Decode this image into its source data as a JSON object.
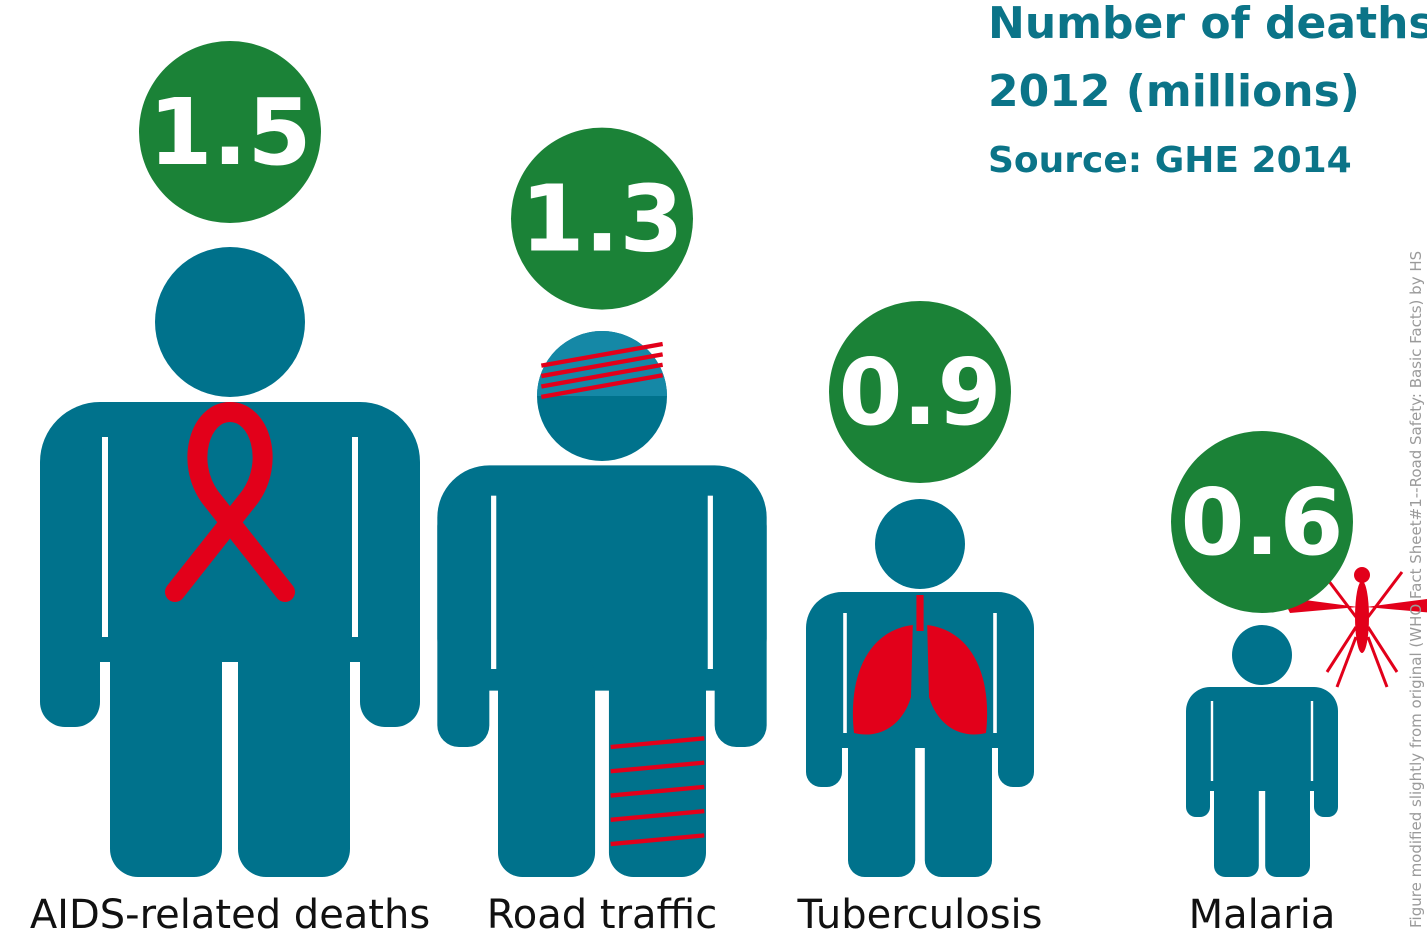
{
  "title": {
    "line1": "Number of deaths",
    "line2": "2012 (millions)",
    "source": "Source: GHE 2014"
  },
  "credit": "Figure modified slightly from original (WHO Fact Sheet#1--Road Safety: Basic Facts) by HS",
  "colors": {
    "figure": "#00728c",
    "badge": "#1b8237",
    "accent": "#e2001a",
    "title": "#0b7488",
    "credit": "#9a9a9a",
    "text": "#111111"
  },
  "chart_data": {
    "type": "bar",
    "categories": [
      "AIDS-related deaths",
      "Road traffic",
      "Tuberculosis",
      "Malaria"
    ],
    "values": [
      1.5,
      1.3,
      0.9,
      0.6
    ],
    "value_labels": [
      "1.5",
      "1.3",
      "0.9",
      "0.6"
    ],
    "icons": [
      "aids-ribbon-icon",
      "bandage-icon",
      "lungs-icon",
      "mosquito-icon"
    ],
    "title": "Number of deaths 2012 (millions)"
  }
}
